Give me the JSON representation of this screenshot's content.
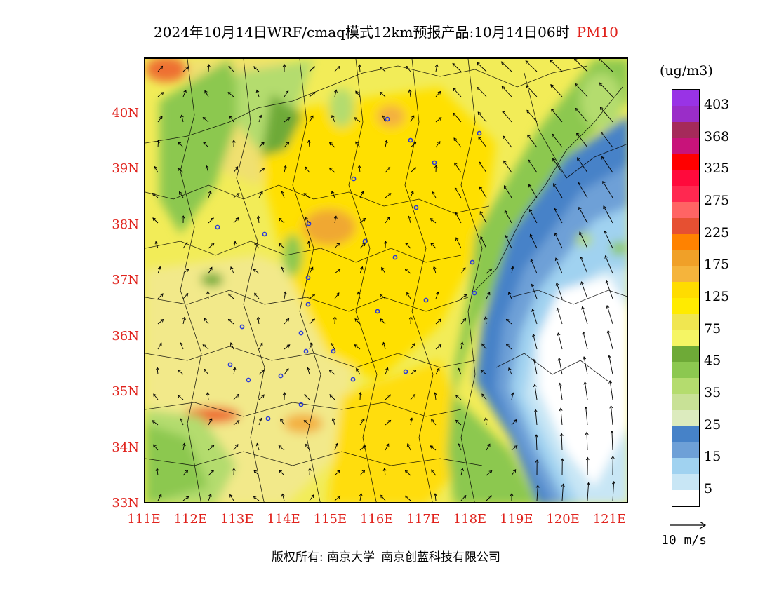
{
  "title": {
    "main": "2024年10月14日WRF/cmaq模式12km预报产品:10月14日06时",
    "pollutant": "PM10",
    "pollutant_color": "#e0221c"
  },
  "map": {
    "lat_labels": [
      "40N",
      "39N",
      "38N",
      "37N",
      "36N",
      "35N",
      "34N",
      "33N"
    ],
    "lon_labels": [
      "111E",
      "112E",
      "113E",
      "114E",
      "115E",
      "116E",
      "117E",
      "118E",
      "119E",
      "120E",
      "121E"
    ],
    "axis_label_color": "#e0221c",
    "lon_range": [
      111,
      121.4
    ],
    "lat_range": [
      33,
      41
    ]
  },
  "legend": {
    "units": "(ug/m3)",
    "levels": [
      {
        "color": "#9933e6",
        "label": "403"
      },
      {
        "color": "#9a2dc8",
        "label": ""
      },
      {
        "color": "#a52a5a",
        "label": "368"
      },
      {
        "color": "#c8137a",
        "label": ""
      },
      {
        "color": "#ff0000",
        "label": "325"
      },
      {
        "color": "#ff0a3c",
        "label": ""
      },
      {
        "color": "#ff2850",
        "label": "275"
      },
      {
        "color": "#ff6464",
        "label": ""
      },
      {
        "color": "#e65032",
        "label": "225"
      },
      {
        "color": "#ff8200",
        "label": ""
      },
      {
        "color": "#f0a028",
        "label": "175"
      },
      {
        "color": "#f5b43c",
        "label": ""
      },
      {
        "color": "#ffdc00",
        "label": "125"
      },
      {
        "color": "#ffeb00",
        "label": ""
      },
      {
        "color": "#f0e650",
        "label": "75"
      },
      {
        "color": "#f5f564",
        "label": ""
      },
      {
        "color": "#6eaa37",
        "label": "45"
      },
      {
        "color": "#8cc850",
        "label": ""
      },
      {
        "color": "#b4dc6e",
        "label": "35"
      },
      {
        "color": "#c8e196",
        "label": ""
      },
      {
        "color": "#dcebbe",
        "label": "25"
      },
      {
        "color": "#4682c8",
        "label": ""
      },
      {
        "color": "#6ea0d7",
        "label": "15"
      },
      {
        "color": "#a0d2f0",
        "label": ""
      },
      {
        "color": "#c8e6f5",
        "label": "5"
      },
      {
        "color": "#ffffff",
        "label": ""
      }
    ]
  },
  "wind_key": {
    "label": "10 m/s"
  },
  "copyright": {
    "left": "版权所有: 南京大学",
    "right": "南京创蓝科技有限公司"
  }
}
